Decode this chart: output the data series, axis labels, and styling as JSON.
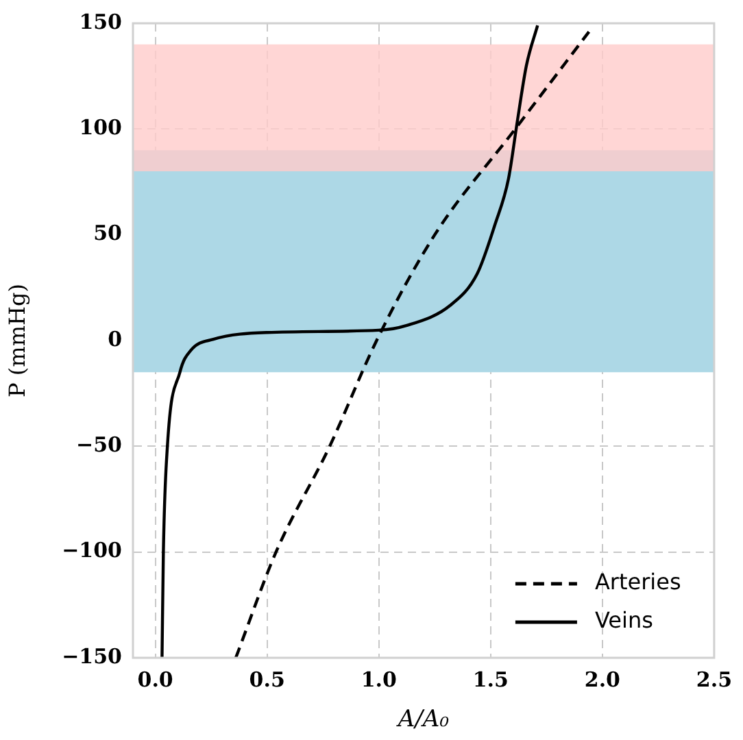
{
  "chart_data": {
    "type": "line",
    "xlabel": "A/A₀",
    "ylabel": "P (mmHg)",
    "xlim": [
      -0.1,
      2.5
    ],
    "xticks": [
      {
        "value": 0,
        "label": "0.0"
      },
      {
        "value": 0.5,
        "label": "0.5"
      },
      {
        "value": 1,
        "label": "1.0"
      },
      {
        "value": 1.5,
        "label": "1.5"
      },
      {
        "value": 2,
        "label": "2.0"
      },
      {
        "value": 2.5,
        "label": "2.5"
      }
    ],
    "ylim": [
      -150,
      150
    ],
    "yticks": [
      {
        "value": -150,
        "label": "−150"
      },
      {
        "value": -100,
        "label": "−100"
      },
      {
        "value": -50,
        "label": "−50"
      },
      0,
      50,
      100,
      150
    ],
    "grid": true,
    "legend": "bottom right",
    "marker": "none",
    "bands": [
      {
        "axis": "y",
        "from": -15,
        "to": 90,
        "color": "#add8e6"
      },
      {
        "axis": "y",
        "from": 80,
        "to": 140,
        "color": "#ffcccb"
      }
    ],
    "series": [
      {
        "name": "Arteries",
        "color": "#000000",
        "line_style": "dashed",
        "x": [
          0.36,
          0.54,
          0.78,
          0.99,
          1.25,
          1.61,
          1.94
        ],
        "values": [
          -150,
          -100,
          -50,
          0,
          50,
          100,
          146
        ]
      },
      {
        "name": "Veins",
        "color": "#000000",
        "line_style": "solid",
        "x": [
          0.03,
          0.036,
          0.054,
          0.11,
          0.16,
          0.26,
          0.5,
          1.0,
          1.12,
          1.32,
          1.44,
          1.52,
          1.58,
          1.62,
          1.66,
          1.71
        ],
        "values": [
          -150,
          -100,
          -50,
          -15,
          -4.5,
          0.6,
          3.8,
          4.9,
          7,
          16.7,
          31.6,
          55,
          76.5,
          104,
          130,
          149
        ]
      }
    ]
  }
}
